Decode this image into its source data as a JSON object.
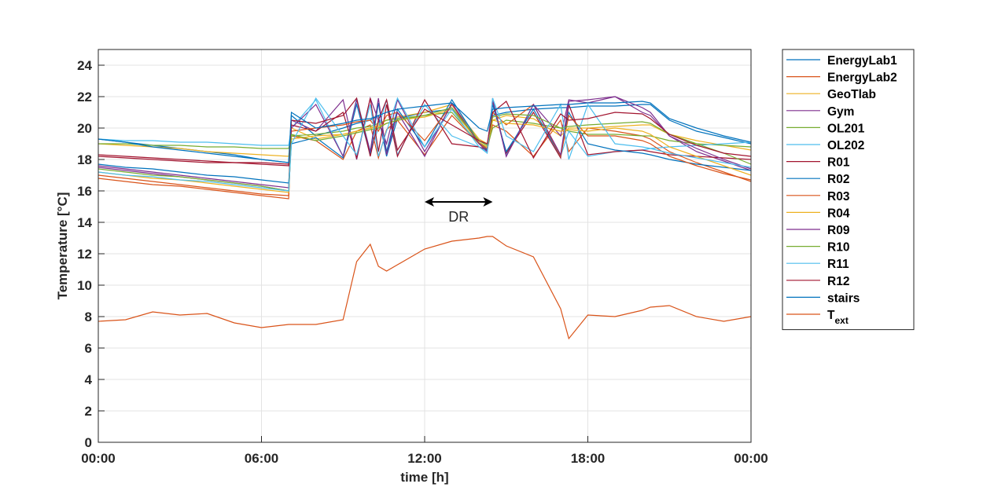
{
  "chart_data": {
    "type": "line",
    "xlabel": "time [h]",
    "ylabel": "Temperature [°C]",
    "x": [
      0,
      1,
      2,
      3,
      4,
      5,
      6,
      7,
      7.1,
      8,
      9,
      9.5,
      10,
      10.3,
      10.6,
      11,
      12,
      13,
      14,
      14.3,
      14.5,
      15,
      16,
      17,
      17.3,
      18,
      19,
      20,
      20.3,
      21,
      22,
      23,
      24
    ],
    "xlim": [
      0,
      24
    ],
    "xticks": [
      {
        "value": 0,
        "label": "00:00"
      },
      {
        "value": 6,
        "label": "06:00"
      },
      {
        "value": 12,
        "label": "12:00"
      },
      {
        "value": 18,
        "label": "18:00"
      },
      {
        "value": 24,
        "label": "00:00"
      }
    ],
    "ylim": [
      0,
      25
    ],
    "yticks": [
      0,
      2,
      4,
      6,
      8,
      10,
      12,
      14,
      16,
      18,
      20,
      22,
      24
    ],
    "grid": true,
    "legend": "outside-right",
    "annotations": [
      {
        "text": "DR",
        "x_start": 12,
        "x_end": 14.5,
        "y": 15.3
      }
    ],
    "series": [
      {
        "name": "EnergyLab1",
        "color": "#0072BD",
        "values": [
          19.3,
          19.1,
          18.9,
          18.7,
          18.5,
          18.3,
          18.0,
          17.8,
          20.8,
          19.5,
          20.0,
          20.3,
          20.5,
          20.8,
          18.2,
          20.6,
          21.0,
          21.2,
          19.2,
          18.9,
          20.8,
          21.0,
          21.2,
          21.3,
          21.3,
          21.4,
          21.4,
          21.5,
          21.5,
          20.5,
          19.8,
          19.4,
          19.0
        ]
      },
      {
        "name": "EnergyLab2",
        "color": "#D95319",
        "values": [
          17.0,
          16.8,
          16.6,
          16.4,
          16.2,
          16.0,
          15.8,
          15.7,
          19.5,
          19.2,
          18.0,
          19.8,
          20.2,
          18.1,
          19.9,
          20.5,
          18.3,
          20.8,
          19.0,
          18.6,
          20.2,
          19.8,
          18.2,
          20.5,
          18.5,
          20.0,
          19.8,
          19.5,
          19.3,
          18.5,
          17.8,
          17.2,
          16.6
        ]
      },
      {
        "name": "GeoTlab",
        "color": "#EDB120",
        "values": [
          19.0,
          18.9,
          18.8,
          18.7,
          18.5,
          18.4,
          18.3,
          18.2,
          20.0,
          19.3,
          19.6,
          19.8,
          20.0,
          20.2,
          20.5,
          20.7,
          21.0,
          21.5,
          19.3,
          19.0,
          20.5,
          20.8,
          20.6,
          19.5,
          20.0,
          20.0,
          20.1,
          20.2,
          20.2,
          19.6,
          19.2,
          18.9,
          18.6
        ]
      },
      {
        "name": "Gym",
        "color": "#7E2F8E",
        "values": [
          17.6,
          17.4,
          17.2,
          17.0,
          16.8,
          16.6,
          16.4,
          16.2,
          20.5,
          19.8,
          21.8,
          18.0,
          21.9,
          20.5,
          19.0,
          21.8,
          18.5,
          21.5,
          19.0,
          18.7,
          21.9,
          18.2,
          21.5,
          19.5,
          21.8,
          21.6,
          22.0,
          21.0,
          20.8,
          19.5,
          18.5,
          17.9,
          17.3
        ]
      },
      {
        "name": "OL201",
        "color": "#77AC30",
        "values": [
          19.0,
          19.0,
          18.9,
          18.9,
          18.8,
          18.8,
          18.7,
          18.7,
          19.5,
          19.6,
          19.8,
          20.0,
          20.1,
          20.3,
          20.5,
          20.6,
          20.8,
          21.0,
          19.0,
          18.8,
          20.0,
          20.5,
          20.3,
          20.0,
          19.8,
          19.6,
          19.6,
          19.5,
          19.5,
          19.2,
          19.0,
          18.9,
          18.8
        ]
      },
      {
        "name": "OL202",
        "color": "#4DBEEE",
        "values": [
          19.3,
          19.2,
          19.2,
          19.1,
          19.1,
          19.0,
          18.9,
          18.9,
          20.0,
          21.8,
          18.2,
          21.9,
          18.5,
          20.0,
          21.8,
          18.3,
          21.5,
          19.5,
          18.8,
          18.5,
          21.9,
          18.3,
          21.5,
          18.2,
          19.8,
          18.2,
          18.5,
          18.6,
          18.7,
          18.8,
          18.9,
          19.0,
          19.1
        ]
      },
      {
        "name": "R01",
        "color": "#A2142F",
        "values": [
          18.3,
          18.2,
          18.1,
          18.0,
          17.9,
          17.8,
          17.8,
          17.7,
          20.2,
          19.8,
          21.0,
          18.1,
          21.9,
          18.5,
          21.5,
          18.2,
          21.8,
          19.0,
          18.8,
          18.6,
          21.7,
          18.4,
          21.0,
          18.1,
          21.5,
          18.3,
          18.5,
          18.6,
          18.5,
          18.3,
          18.2,
          18.1,
          18.0
        ]
      },
      {
        "name": "R02",
        "color": "#0072BD",
        "values": [
          17.7,
          17.5,
          17.4,
          17.2,
          17.0,
          16.9,
          16.7,
          16.5,
          19.0,
          19.4,
          18.1,
          21.5,
          18.3,
          21.6,
          18.5,
          21.2,
          18.8,
          21.8,
          19.1,
          18.6,
          21.5,
          18.5,
          21.2,
          18.2,
          21.0,
          19.0,
          18.6,
          18.4,
          18.3,
          18.0,
          17.7,
          17.5,
          17.3
        ]
      },
      {
        "name": "R03",
        "color": "#D95319",
        "values": [
          16.8,
          16.6,
          16.4,
          16.3,
          16.1,
          15.9,
          15.7,
          15.5,
          19.8,
          20.0,
          20.2,
          20.4,
          20.5,
          19.8,
          20.8,
          21.0,
          19.2,
          21.5,
          19.0,
          18.7,
          21.0,
          20.2,
          21.5,
          18.2,
          20.8,
          19.5,
          19.5,
          19.2,
          19.0,
          18.2,
          17.6,
          17.1,
          16.7
        ]
      },
      {
        "name": "R04",
        "color": "#EDB120",
        "values": [
          17.2,
          17.0,
          16.8,
          16.7,
          16.5,
          16.3,
          16.1,
          15.9,
          19.3,
          19.5,
          19.6,
          19.8,
          20.0,
          20.1,
          20.3,
          20.5,
          20.7,
          21.2,
          19.1,
          18.8,
          20.5,
          20.3,
          20.2,
          19.8,
          19.9,
          19.8,
          20.0,
          19.8,
          19.6,
          18.8,
          18.2,
          17.6,
          17.0
        ]
      },
      {
        "name": "R09",
        "color": "#7E2F8E",
        "values": [
          17.5,
          17.3,
          17.1,
          16.9,
          16.7,
          16.5,
          16.3,
          16.0,
          20.0,
          21.5,
          18.2,
          21.8,
          18.5,
          21.9,
          18.3,
          21.0,
          18.2,
          21.6,
          19.0,
          18.5,
          21.8,
          18.2,
          21.5,
          18.3,
          21.7,
          21.8,
          22.0,
          21.3,
          21.0,
          19.5,
          18.7,
          18.0,
          17.4
        ]
      },
      {
        "name": "R10",
        "color": "#77AC30",
        "values": [
          17.4,
          17.2,
          17.0,
          16.9,
          16.7,
          16.5,
          16.3,
          16.0,
          19.6,
          19.2,
          19.5,
          19.7,
          19.9,
          20.0,
          20.3,
          20.5,
          20.8,
          21.3,
          19.2,
          18.9,
          20.7,
          20.9,
          20.8,
          20.0,
          20.1,
          20.2,
          20.3,
          20.4,
          20.3,
          19.6,
          19.0,
          18.4,
          17.7
        ]
      },
      {
        "name": "R11",
        "color": "#4DBEEE",
        "values": [
          17.2,
          17.0,
          16.9,
          16.7,
          16.6,
          16.4,
          16.2,
          16.0,
          19.0,
          21.9,
          19.5,
          18.3,
          21.5,
          18.2,
          19.8,
          21.9,
          18.8,
          21.2,
          18.8,
          18.4,
          21.9,
          19.5,
          18.5,
          21.5,
          18.0,
          21.5,
          19.0,
          18.8,
          18.7,
          18.4,
          18.1,
          17.8,
          17.5
        ]
      },
      {
        "name": "R12",
        "color": "#A2142F",
        "values": [
          18.2,
          18.1,
          18.0,
          17.9,
          17.8,
          17.8,
          17.7,
          17.6,
          20.5,
          20.3,
          20.8,
          21.9,
          18.2,
          20.5,
          21.8,
          18.6,
          21.2,
          20.2,
          19.2,
          19.0,
          21.0,
          21.7,
          18.1,
          20.9,
          20.5,
          20.6,
          21.0,
          20.9,
          20.6,
          19.6,
          18.9,
          18.4,
          18.2
        ]
      },
      {
        "name": "stairs",
        "color": "#0072BD",
        "values": [
          19.3,
          19.1,
          18.8,
          18.6,
          18.4,
          18.2,
          18.0,
          17.8,
          21.0,
          20.0,
          20.3,
          20.5,
          20.6,
          20.8,
          21.0,
          21.2,
          21.4,
          21.6,
          20.0,
          19.8,
          21.2,
          21.3,
          21.4,
          21.5,
          21.5,
          21.6,
          21.6,
          21.7,
          21.6,
          20.6,
          20.0,
          19.5,
          19.1
        ]
      },
      {
        "name": "T_ext",
        "color": "#D95319",
        "values": [
          7.7,
          7.8,
          8.3,
          8.1,
          8.2,
          7.6,
          7.3,
          7.5,
          7.5,
          7.5,
          7.8,
          11.5,
          12.6,
          11.2,
          10.9,
          11.3,
          12.3,
          12.8,
          13.0,
          13.1,
          13.1,
          12.5,
          11.8,
          8.5,
          6.6,
          8.1,
          8.0,
          8.4,
          8.6,
          8.7,
          8.0,
          7.7,
          8.0
        ]
      }
    ]
  }
}
